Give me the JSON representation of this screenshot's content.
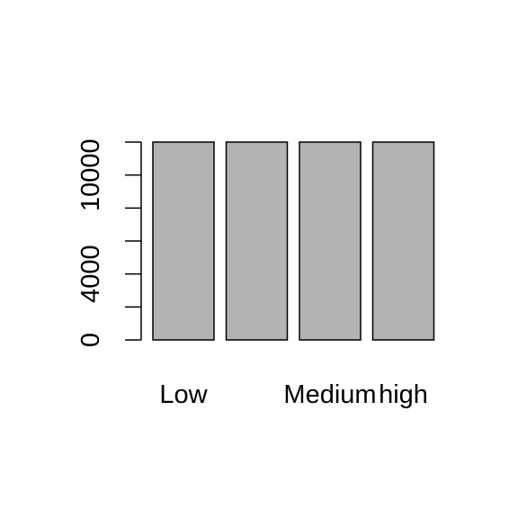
{
  "chart_data": {
    "type": "bar",
    "categories": [
      "Low",
      "",
      "Medium",
      "high"
    ],
    "values": [
      12000,
      12000,
      12000,
      12000
    ],
    "ylim": [
      0,
      12000
    ],
    "yticks": [
      0,
      2000,
      4000,
      6000,
      8000,
      10000,
      12000
    ],
    "ytick_labels": [
      "0",
      "",
      "4000",
      "",
      "",
      "10000",
      ""
    ],
    "title": "",
    "xlabel": "",
    "ylabel": "",
    "grid": false,
    "legend": "none",
    "bar_color": "#b3b3b3",
    "border_color": "#000000"
  }
}
